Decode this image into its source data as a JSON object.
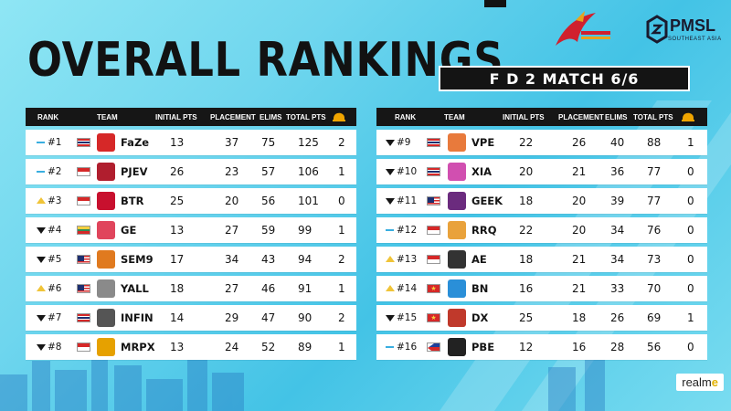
{
  "title": "OVERALL RANKINGS",
  "subtitle": "F D 2 MATCH 6/6",
  "sponsor": {
    "prefix": "realm",
    "suffix": "e"
  },
  "pmsl_logo": {
    "name": "PMSL",
    "tagline": "SOUTHEAST ASIA"
  },
  "headers": {
    "rank": "RANK",
    "team": "TEAM",
    "initial": "INITIAL PTS",
    "placement": "PLACEMENT",
    "elims": "ELIMS",
    "total": "TOTAL PTS"
  },
  "colors": {
    "trend_same": "#39aee0",
    "trend_up": "#f0c438",
    "trend_down": "#161616",
    "chicken_icon": "#f0a400"
  },
  "left_rows": [
    {
      "trend": "same",
      "rank": "#1",
      "flag": "TH",
      "logo_color": "#d62828",
      "team": "FaZe",
      "initial": "13",
      "placement": "37",
      "elims": "75",
      "total": "125",
      "chickens": "2"
    },
    {
      "trend": "same",
      "rank": "#2",
      "flag": "ID",
      "logo_color": "#b01e2e",
      "team": "PJEV",
      "initial": "26",
      "placement": "23",
      "elims": "57",
      "total": "106",
      "chickens": "1"
    },
    {
      "trend": "up",
      "rank": "#3",
      "flag": "ID",
      "logo_color": "#c8102e",
      "team": "BTR",
      "initial": "25",
      "placement": "20",
      "elims": "56",
      "total": "101",
      "chickens": "0"
    },
    {
      "trend": "down",
      "rank": "#4",
      "flag": "MM",
      "logo_color": "#e0455c",
      "team": "GE",
      "initial": "13",
      "placement": "27",
      "elims": "59",
      "total": "99",
      "chickens": "1"
    },
    {
      "trend": "down",
      "rank": "#5",
      "flag": "MY",
      "logo_color": "#e07a1f",
      "team": "SEM9",
      "initial": "17",
      "placement": "34",
      "elims": "43",
      "total": "94",
      "chickens": "2"
    },
    {
      "trend": "up",
      "rank": "#6",
      "flag": "MY",
      "logo_color": "#8a8a8a",
      "team": "YALL",
      "initial": "18",
      "placement": "27",
      "elims": "46",
      "total": "91",
      "chickens": "1"
    },
    {
      "trend": "down",
      "rank": "#7",
      "flag": "TH",
      "logo_color": "#555555",
      "team": "INFIN",
      "initial": "14",
      "placement": "29",
      "elims": "47",
      "total": "90",
      "chickens": "2"
    },
    {
      "trend": "down",
      "rank": "#8",
      "flag": "ID",
      "logo_color": "#e6a100",
      "team": "MRPX",
      "initial": "13",
      "placement": "24",
      "elims": "52",
      "total": "89",
      "chickens": "1"
    }
  ],
  "right_rows": [
    {
      "trend": "down",
      "rank": "#9",
      "flag": "TH",
      "logo_color": "#e87a3c",
      "team": "VPE",
      "initial": "22",
      "placement": "26",
      "elims": "40",
      "total": "88",
      "chickens": "1"
    },
    {
      "trend": "down",
      "rank": "#10",
      "flag": "TH",
      "logo_color": "#d14fb0",
      "team": "XIA",
      "initial": "20",
      "placement": "21",
      "elims": "36",
      "total": "77",
      "chickens": "0"
    },
    {
      "trend": "down",
      "rank": "#11",
      "flag": "MY",
      "logo_color": "#6b2b7e",
      "team": "GEEK",
      "initial": "18",
      "placement": "20",
      "elims": "39",
      "total": "77",
      "chickens": "0"
    },
    {
      "trend": "same",
      "rank": "#12",
      "flag": "ID",
      "logo_color": "#e9a23b",
      "team": "RRQ",
      "initial": "22",
      "placement": "20",
      "elims": "34",
      "total": "76",
      "chickens": "0"
    },
    {
      "trend": "up",
      "rank": "#13",
      "flag": "ID",
      "logo_color": "#333333",
      "team": "AE",
      "initial": "18",
      "placement": "21",
      "elims": "34",
      "total": "73",
      "chickens": "0"
    },
    {
      "trend": "up",
      "rank": "#14",
      "flag": "VN",
      "logo_color": "#2a8fd8",
      "team": "BN",
      "initial": "16",
      "placement": "21",
      "elims": "33",
      "total": "70",
      "chickens": "0"
    },
    {
      "trend": "down",
      "rank": "#15",
      "flag": "VN",
      "logo_color": "#c0392b",
      "team": "DX",
      "initial": "25",
      "placement": "18",
      "elims": "26",
      "total": "69",
      "chickens": "1"
    },
    {
      "trend": "same",
      "rank": "#16",
      "flag": "PH",
      "logo_color": "#222222",
      "team": "PBE",
      "initial": "12",
      "placement": "16",
      "elims": "28",
      "total": "56",
      "chickens": "0"
    }
  ]
}
